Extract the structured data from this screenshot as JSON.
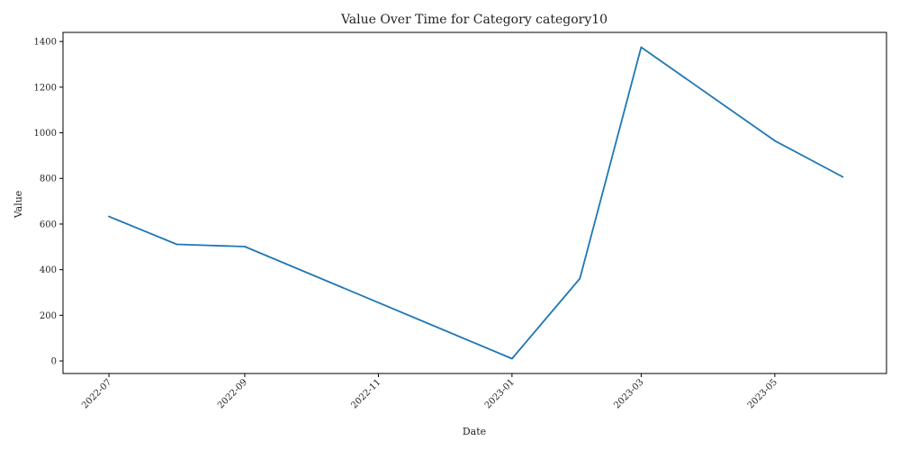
{
  "chart_data": {
    "type": "line",
    "title": "Value Over Time for Category category10",
    "xlabel": "Date",
    "ylabel": "Value",
    "x_type": "date",
    "xlim": [
      "2022-06-10",
      "2023-06-21"
    ],
    "ylim": [
      -55,
      1440
    ],
    "x_ticks": [
      "2022-07",
      "2022-09",
      "2022-11",
      "2023-01",
      "2023-03",
      "2023-05"
    ],
    "x_tick_dates": [
      "2022-07-01",
      "2022-09-01",
      "2022-11-01",
      "2023-01-01",
      "2023-03-01",
      "2023-05-01"
    ],
    "y_ticks": [
      0,
      200,
      400,
      600,
      800,
      1000,
      1200,
      1400
    ],
    "grid": false,
    "series": [
      {
        "color": "#1f77b4",
        "points": [
          {
            "x": "2022-07-01",
            "y": 633
          },
          {
            "x": "2022-08-01",
            "y": 511
          },
          {
            "x": "2022-09-01",
            "y": 501
          },
          {
            "x": "2023-01-01",
            "y": 10
          },
          {
            "x": "2023-02-01",
            "y": 361
          },
          {
            "x": "2023-03-01",
            "y": 1375
          },
          {
            "x": "2023-05-01",
            "y": 965
          },
          {
            "x": "2023-06-01",
            "y": 807
          }
        ]
      }
    ]
  }
}
